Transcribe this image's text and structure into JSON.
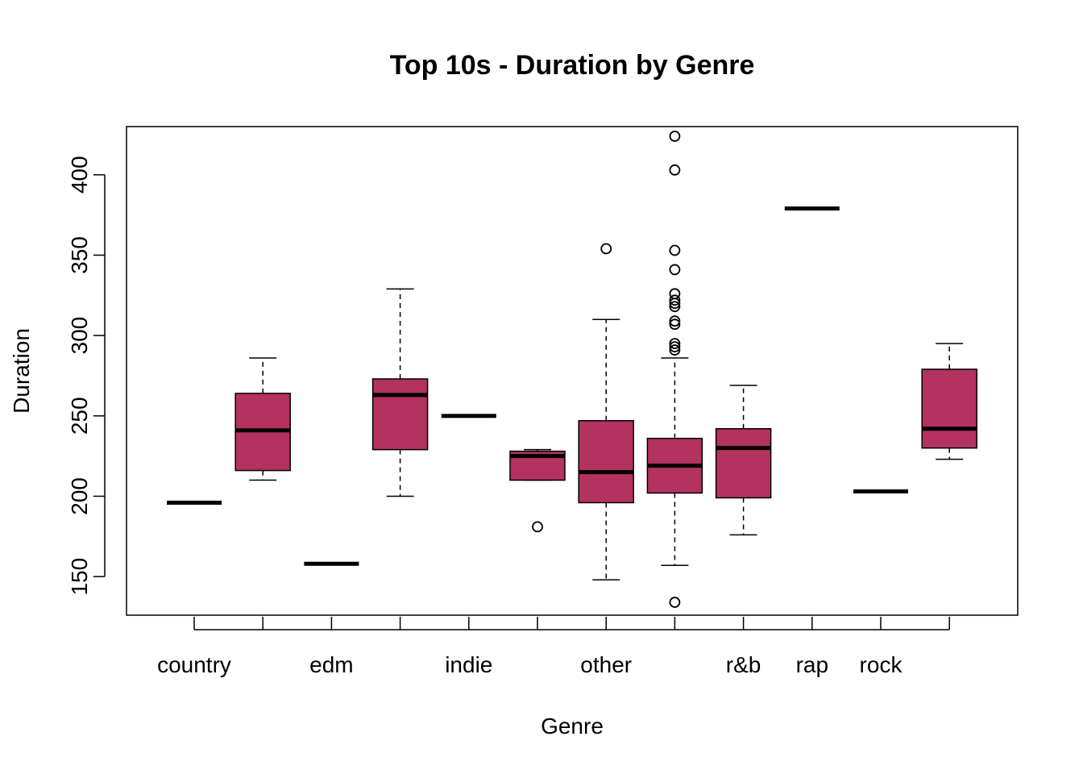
{
  "chart_data": {
    "type": "boxplot",
    "title": "Top 10s - Duration by Genre",
    "xlabel": "Genre",
    "ylabel": "Duration",
    "ylim": [
      126,
      430
    ],
    "y_ticks": [
      150,
      200,
      250,
      300,
      350,
      400
    ],
    "categories": [
      "country",
      "",
      "edm",
      "",
      "indie",
      "",
      "other",
      "",
      "r&b",
      "rap",
      "rock",
      ""
    ],
    "fill_color": "#B3325F",
    "boxes": [
      {
        "q1": 196,
        "median": 196,
        "q3": 196,
        "whisker_low": 196,
        "whisker_high": 196,
        "outliers": []
      },
      {
        "q1": 216,
        "median": 241,
        "q3": 264,
        "whisker_low": 210,
        "whisker_high": 286,
        "outliers": []
      },
      {
        "q1": 158,
        "median": 158,
        "q3": 158,
        "whisker_low": 158,
        "whisker_high": 158,
        "outliers": []
      },
      {
        "q1": 229,
        "median": 263,
        "q3": 273,
        "whisker_low": 200,
        "whisker_high": 329,
        "outliers": []
      },
      {
        "q1": 250,
        "median": 250,
        "q3": 250,
        "whisker_low": 250,
        "whisker_high": 250,
        "outliers": []
      },
      {
        "q1": 210,
        "median": 225,
        "q3": 228,
        "whisker_low": 210,
        "whisker_high": 229,
        "outliers": [
          181
        ]
      },
      {
        "q1": 196,
        "median": 215,
        "q3": 247,
        "whisker_low": 148,
        "whisker_high": 310,
        "outliers": [
          354
        ]
      },
      {
        "q1": 202,
        "median": 219,
        "q3": 236,
        "whisker_low": 157,
        "whisker_high": 286,
        "outliers": [
          134,
          291,
          293,
          295,
          307,
          309,
          318,
          320,
          322,
          326,
          341,
          353,
          403,
          424
        ]
      },
      {
        "q1": 199,
        "median": 230,
        "q3": 242,
        "whisker_low": 176,
        "whisker_high": 269,
        "outliers": []
      },
      {
        "q1": 379,
        "median": 379,
        "q3": 379,
        "whisker_low": 379,
        "whisker_high": 379,
        "outliers": []
      },
      {
        "q1": 203,
        "median": 203,
        "q3": 203,
        "whisker_low": 203,
        "whisker_high": 203,
        "outliers": []
      },
      {
        "q1": 230,
        "median": 242,
        "q3": 279,
        "whisker_low": 223,
        "whisker_high": 295,
        "outliers": []
      }
    ]
  }
}
